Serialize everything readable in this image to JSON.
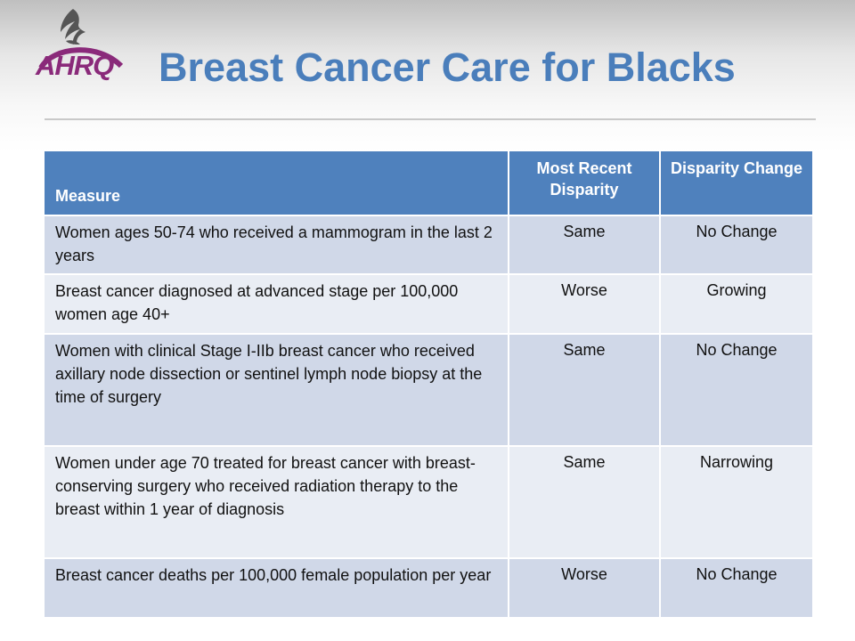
{
  "slide": {
    "title": "Breast Cancer Care for Blacks",
    "logo_text": "AHRQ",
    "brand_color": "#4a7ebb",
    "logo_color": "#8a2a7a"
  },
  "table": {
    "headers": [
      "Measure",
      "Most Recent Disparity",
      "Disparity Change"
    ],
    "rows": [
      {
        "measure": "Women ages 50-74 who received a mammogram in the last 2 years",
        "disparity": "Same",
        "change": "No Change"
      },
      {
        "measure": "Breast cancer diagnosed at advanced stage per 100,000 women age 40+",
        "disparity": "Worse",
        "change": "Growing"
      },
      {
        "measure": "Women with clinical Stage I-IIb breast cancer who received axillary node dissection or sentinel lymph node biopsy at the time of surgery",
        "disparity": "Same",
        "change": "No Change"
      },
      {
        "measure": "Women under age 70 treated for breast cancer with breast-conserving surgery who received radiation therapy to the breast within 1 year of diagnosis",
        "disparity": "Same",
        "change": "Narrowing"
      },
      {
        "measure": "Breast cancer deaths per 100,000 female population per year",
        "disparity": "Worse",
        "change": "No Change"
      }
    ]
  }
}
